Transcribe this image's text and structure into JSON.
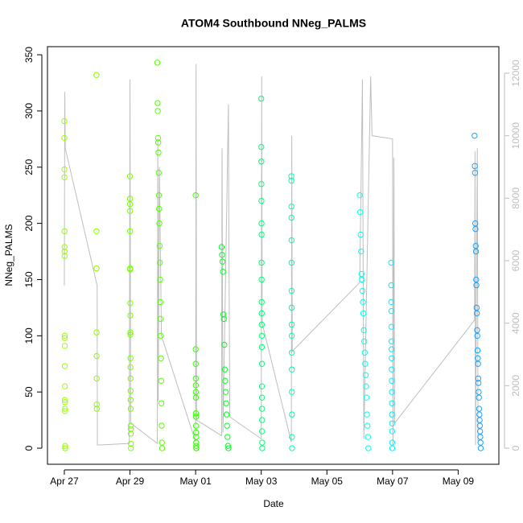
{
  "chart_data": {
    "type": "scatter",
    "title": "ATOM4 Southbound NNeg_PALMS",
    "x_label": "Date",
    "y_label": "NNeg_PALMS",
    "xlim": [
      "04-26T11:40",
      "05-10T05:45"
    ],
    "xticks": [
      {
        "value": "04-27T00:00",
        "label": "Apr 27"
      },
      {
        "value": "04-29T00:00",
        "label": "Apr 29"
      },
      {
        "value": "05-01T00:00",
        "label": "May 01"
      },
      {
        "value": "05-03T00:00",
        "label": "May 03"
      },
      {
        "value": "05-05T00:00",
        "label": "May 05"
      },
      {
        "value": "05-07T00:00",
        "label": "May 07"
      },
      {
        "value": "05-09T00:00",
        "label": "May 09"
      }
    ],
    "ylim": [
      -14.3,
      357.2
    ],
    "yticks": [
      0,
      50,
      100,
      150,
      200,
      250,
      300,
      350
    ],
    "y2lim": [
      -515,
      12850
    ],
    "y2ticks": [
      0,
      2000,
      4000,
      6000,
      8000,
      10000,
      12000
    ],
    "y2color": "#bebebe",
    "series": [
      {
        "color": "#bebebe",
        "axis": "y2",
        "kind": "line",
        "x": [
          "04-27T00:00",
          "04-27T00:20",
          "04-27T00:40",
          "04-28T00:00",
          "04-28T00:10",
          "04-28T23:30",
          "04-29T00:00",
          "04-29T00:30",
          "04-29T20:00",
          "04-29T20:20",
          "04-29T20:40",
          "04-29T21:30",
          "04-29T23:00",
          "05-01T00:00",
          "05-01T00:20",
          "05-01T00:40",
          "05-01T19:00",
          "05-01T19:20",
          "05-01T20:00",
          "05-02T00:00",
          "05-02T00:20",
          "05-02T01:00",
          "05-03T00:00",
          "05-03T00:20",
          "05-03T00:40",
          "05-03T22:00",
          "05-03T22:20",
          "05-03T22:40",
          "05-06T00:00",
          "05-06T02:00",
          "05-06T03:00",
          "05-06T08:00",
          "05-06T09:00",
          "05-07T00:00",
          "05-07T00:20",
          "05-07T01:00",
          "05-07T01:30",
          "05-09T12:00",
          "05-09T12:20",
          "05-09T12:40",
          "05-09T14:00",
          "05-09T14:30"
        ],
        "values": [
          5200,
          11400,
          9600,
          5200,
          100,
          150,
          11800,
          800,
          150,
          9900,
          1500,
          9000,
          3600,
          200,
          12300,
          900,
          400,
          9600,
          500,
          11000,
          6800,
          1000,
          300,
          11900,
          4000,
          200,
          10000,
          3100,
          5300,
          11800,
          300,
          11900,
          10000,
          9900,
          100,
          9300,
          800,
          4100,
          9500,
          100,
          9600,
          200
        ]
      },
      {
        "color": "#99ff00",
        "x": [
          "04-27T00:00",
          "04-27T00:02",
          "04-27T00:04",
          "04-27T00:06",
          "04-27T00:08",
          "04-27T00:10",
          "04-27T00:12",
          "04-27T00:14",
          "04-27T00:16",
          "04-27T00:18",
          "04-27T00:20",
          "04-27T00:22",
          "04-27T00:24",
          "04-27T00:26",
          "04-27T00:28",
          "04-27T00:30",
          "04-27T00:32",
          "04-27T00:34",
          "04-27T00:36",
          "04-27T00:38"
        ],
        "values": [
          291,
          276,
          248,
          241,
          193,
          179,
          175,
          171,
          100,
          98,
          91,
          73,
          55,
          43,
          41,
          35,
          33,
          2,
          0,
          0
        ]
      },
      {
        "color": "#88ff00",
        "x": [
          "04-27T23:30",
          "04-27T23:32",
          "04-27T23:34",
          "04-27T23:36",
          "04-27T23:38",
          "04-27T23:40",
          "04-27T23:42",
          "04-27T23:44"
        ],
        "values": [
          332,
          193,
          160,
          103,
          82,
          62,
          39,
          35
        ]
      },
      {
        "color": "#77ff00",
        "x": [
          "04-29T00:00",
          "04-29T00:02",
          "04-29T00:04",
          "04-29T00:06",
          "04-29T00:08",
          "04-29T00:10",
          "04-29T00:12",
          "04-29T00:14",
          "04-29T00:16",
          "04-29T00:18",
          "04-29T00:20",
          "04-29T00:22",
          "04-29T00:24",
          "04-29T00:26",
          "04-29T00:28",
          "04-29T00:30",
          "04-29T00:32",
          "04-29T00:34",
          "04-29T00:36",
          "04-29T00:38",
          "04-29T00:40",
          "04-29T00:42"
        ],
        "values": [
          242,
          222,
          217,
          211,
          193,
          160,
          159,
          129,
          118,
          103,
          101,
          80,
          72,
          62,
          51,
          43,
          35,
          20,
          17,
          13,
          4,
          0
        ]
      },
      {
        "color": "#55ff00",
        "x": [
          "04-29T20:00",
          "04-29T20:10",
          "04-29T20:20",
          "04-29T20:30",
          "04-29T20:40",
          "04-29T20:50",
          "04-29T21:00",
          "04-29T21:10",
          "04-29T21:20",
          "04-29T21:30",
          "04-29T21:40",
          "04-29T21:50",
          "04-29T22:00",
          "04-29T22:10",
          "04-29T22:20",
          "04-29T22:30",
          "04-29T22:40",
          "04-29T22:50",
          "04-29T23:00",
          "04-29T23:10",
          "04-29T23:20",
          "04-29T23:30"
        ],
        "values": [
          343,
          307,
          300,
          276,
          272,
          263,
          245,
          225,
          213,
          200,
          180,
          165,
          150,
          130,
          115,
          100,
          80,
          60,
          40,
          20,
          5,
          0
        ]
      },
      {
        "color": "#33ff00",
        "x": [
          "05-01T00:00",
          "05-01T00:02",
          "05-01T00:04",
          "05-01T00:06",
          "05-01T00:08",
          "05-01T00:10",
          "05-01T00:12",
          "05-01T00:14",
          "05-01T00:16",
          "05-01T00:18",
          "05-01T00:20",
          "05-01T00:22",
          "05-01T00:24",
          "05-01T00:26",
          "05-01T00:28",
          "05-01T00:30"
        ],
        "values": [
          225,
          88,
          75,
          62,
          56,
          50,
          45,
          31,
          28,
          20,
          14,
          10,
          5,
          2,
          0,
          0
        ]
      },
      {
        "color": "#00ff22",
        "x": [
          "05-01T19:00",
          "05-01T19:20",
          "05-01T19:40",
          "05-01T20:00",
          "05-01T20:20",
          "05-01T20:40",
          "05-01T21:00",
          "05-01T21:20",
          "05-01T21:40",
          "05-01T22:00",
          "05-01T22:20",
          "05-01T22:40",
          "05-01T23:00",
          "05-01T23:20",
          "05-01T23:40",
          "05-02T00:00"
        ],
        "values": [
          179,
          172,
          166,
          157,
          119,
          115,
          92,
          70,
          60,
          50,
          40,
          30,
          20,
          10,
          2,
          0
        ]
      },
      {
        "color": "#00ff77",
        "x": [
          "05-03T00:00",
          "05-03T00:02",
          "05-03T00:04",
          "05-03T00:06",
          "05-03T00:08",
          "05-03T00:10",
          "05-03T00:12",
          "05-03T00:14",
          "05-03T00:16",
          "05-03T00:18",
          "05-03T00:20",
          "05-03T00:22",
          "05-03T00:24",
          "05-03T00:26",
          "05-03T00:28",
          "05-03T00:30",
          "05-03T00:32",
          "05-03T00:34",
          "05-03T00:36",
          "05-03T00:38",
          "05-03T00:40",
          "05-03T00:42"
        ],
        "values": [
          311,
          268,
          255,
          235,
          220,
          200,
          190,
          165,
          150,
          130,
          120,
          110,
          100,
          90,
          75,
          55,
          45,
          35,
          25,
          15,
          5,
          0
        ]
      },
      {
        "color": "#00ffaa",
        "x": [
          "05-03T22:00",
          "05-03T22:02",
          "05-03T22:04",
          "05-03T22:06",
          "05-03T22:08",
          "05-03T22:10",
          "05-03T22:12",
          "05-03T22:14",
          "05-03T22:16",
          "05-03T22:18",
          "05-03T22:20",
          "05-03T22:22",
          "05-03T22:24",
          "05-03T22:26",
          "05-03T22:28",
          "05-03T22:30"
        ],
        "values": [
          242,
          238,
          215,
          205,
          185,
          165,
          140,
          125,
          110,
          100,
          85,
          70,
          50,
          30,
          10,
          0
        ]
      },
      {
        "color": "#00ffee",
        "x": [
          "05-06T00:00",
          "05-06T00:20",
          "05-06T00:40",
          "05-06T01:00",
          "05-06T01:20",
          "05-06T01:40",
          "05-06T02:00",
          "05-06T02:20",
          "05-06T02:40",
          "05-06T03:00",
          "05-06T03:20",
          "05-06T03:40",
          "05-06T04:00",
          "05-06T04:20",
          "05-06T04:40",
          "05-06T05:00",
          "05-06T05:20",
          "05-06T05:40",
          "05-06T06:00",
          "05-06T06:20"
        ],
        "values": [
          225,
          210,
          190,
          175,
          155,
          150,
          140,
          130,
          120,
          105,
          95,
          85,
          75,
          65,
          55,
          45,
          30,
          20,
          10,
          0
        ]
      },
      {
        "color": "#00f0ff",
        "x": [
          "05-06T23:00",
          "05-06T23:03",
          "05-06T23:06",
          "05-06T23:09",
          "05-06T23:12",
          "05-06T23:15",
          "05-06T23:18",
          "05-06T23:21",
          "05-06T23:24",
          "05-06T23:27",
          "05-06T23:30",
          "05-06T23:33",
          "05-06T23:36",
          "05-06T23:39",
          "05-06T23:42",
          "05-06T23:45",
          "05-06T23:48"
        ],
        "values": [
          165,
          145,
          130,
          122,
          108,
          95,
          88,
          80,
          70,
          60,
          50,
          40,
          30,
          22,
          15,
          5,
          0
        ]
      },
      {
        "color": "#1aa3ff",
        "x": [
          "05-09T12:00",
          "05-09T12:10",
          "05-09T12:20",
          "05-09T12:30",
          "05-09T12:40",
          "05-09T12:50",
          "05-09T13:00",
          "05-09T13:10",
          "05-09T13:20",
          "05-09T13:30",
          "05-09T13:40",
          "05-09T13:50",
          "05-09T14:00",
          "05-09T14:10",
          "05-09T14:20",
          "05-09T14:30",
          "05-09T14:40",
          "05-09T14:50",
          "05-09T15:00",
          "05-09T15:10",
          "05-09T15:20",
          "05-09T15:30",
          "05-09T15:40",
          "05-09T15:50",
          "05-09T16:00",
          "05-09T16:10",
          "05-09T16:20",
          "05-09T16:30"
        ],
        "values": [
          278,
          251,
          245,
          200,
          195,
          180,
          175,
          150,
          145,
          125,
          120,
          105,
          100,
          87,
          80,
          75,
          62,
          58,
          50,
          45,
          35,
          30,
          25,
          20,
          15,
          10,
          5,
          0
        ]
      }
    ]
  }
}
